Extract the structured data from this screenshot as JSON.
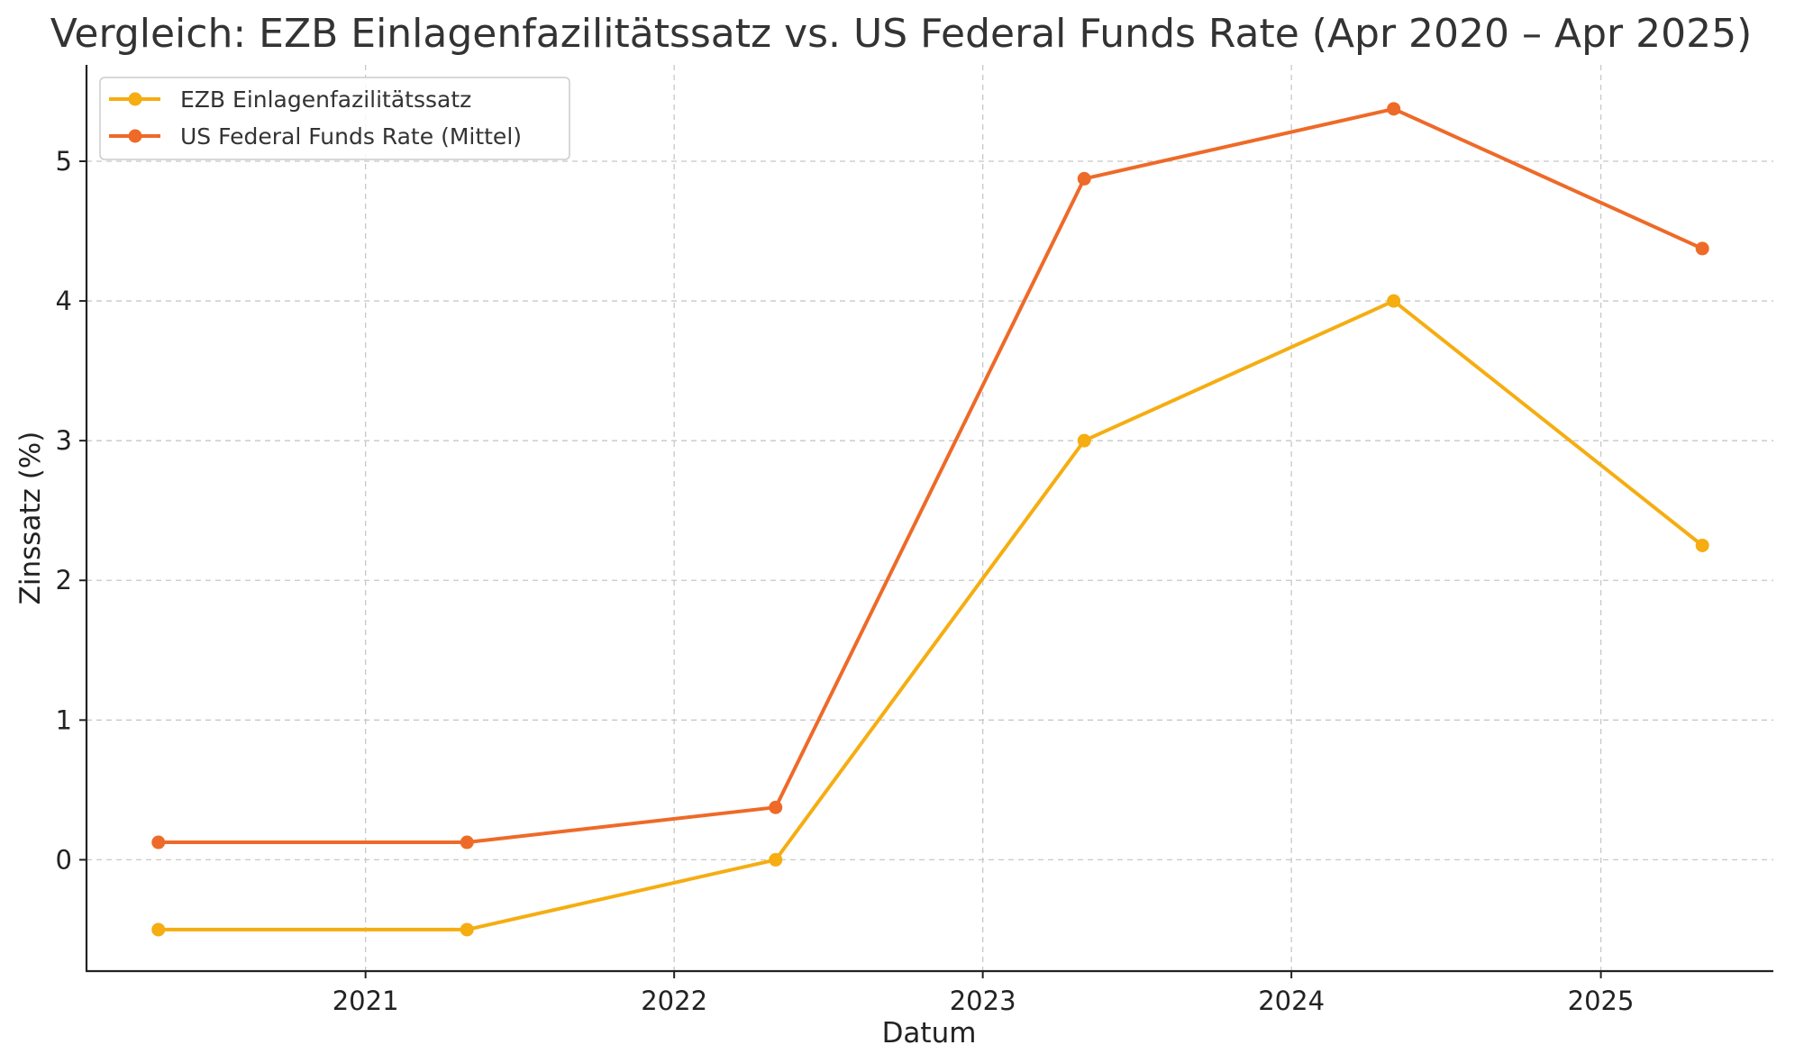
{
  "chart_data": {
    "type": "line",
    "title": "Vergleich: EZB Einlagenfazilitätssatz vs. US Federal Funds Rate (Apr 2020 – Apr 2025)",
    "xlabel": "Datum",
    "ylabel": "Zinssatz (%)",
    "x": [
      "2020-05-01",
      "2021-05-01",
      "2022-05-01",
      "2023-05-01",
      "2024-05-01",
      "2025-05-01"
    ],
    "series": [
      {
        "name": "EZB Einlagenfazilitätssatz",
        "color": "#F5AD11",
        "values": [
          -0.5,
          -0.5,
          0.0,
          3.0,
          4.0,
          2.25
        ]
      },
      {
        "name": "US Federal Funds Rate (Mittel)",
        "color": "#EE6A28",
        "values": [
          0.125,
          0.125,
          0.375,
          4.875,
          5.375,
          4.375
        ]
      }
    ],
    "xlim": [
      "2020-02-06",
      "2025-07-24"
    ],
    "ylim": [
      -0.797,
      5.69
    ],
    "x_ticks": [
      {
        "date": "2021-01-01",
        "label": "2021"
      },
      {
        "date": "2022-01-01",
        "label": "2022"
      },
      {
        "date": "2023-01-01",
        "label": "2023"
      },
      {
        "date": "2024-01-01",
        "label": "2024"
      },
      {
        "date": "2025-01-01",
        "label": "2025"
      }
    ],
    "y_ticks": [
      0,
      1,
      2,
      3,
      4,
      5
    ],
    "grid": true,
    "legend_position": "top-left"
  }
}
